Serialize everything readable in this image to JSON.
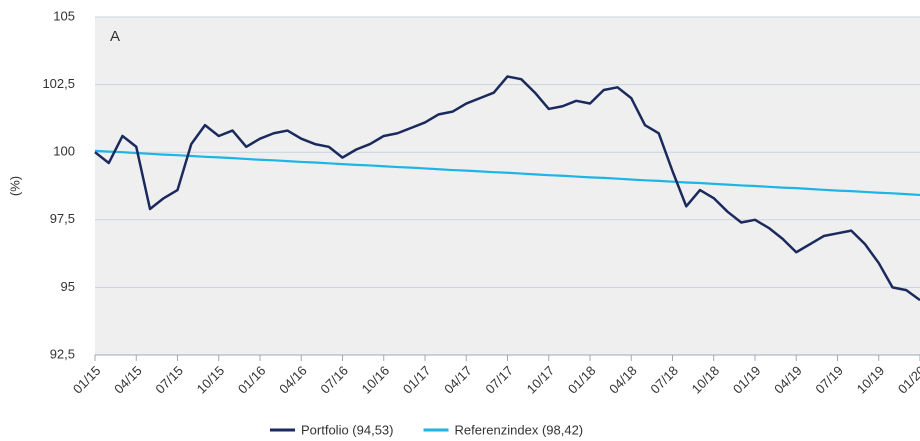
{
  "chart_data": {
    "type": "line",
    "annotation": "A",
    "ylabel": "(%)",
    "x": [
      "01/15",
      null,
      null,
      "04/15",
      null,
      null,
      "07/15",
      null,
      null,
      "10/15",
      null,
      null,
      "01/16",
      null,
      null,
      "04/16",
      null,
      null,
      "07/16",
      null,
      null,
      "10/16",
      null,
      null,
      "01/17",
      null,
      null,
      "04/17",
      null,
      null,
      "07/17",
      null,
      null,
      "10/17",
      null,
      null,
      "01/18",
      null,
      null,
      "04/18",
      null,
      null,
      "07/18",
      null,
      null,
      "10/18",
      null,
      null,
      "01/19",
      null,
      null,
      "04/19",
      null,
      null,
      "07/19",
      null,
      null,
      "10/19",
      null,
      null,
      "01/20"
    ],
    "series": [
      {
        "name": "Portfolio (94,53)",
        "color": "#1b2a5c",
        "values": [
          100.0,
          99.6,
          100.6,
          100.2,
          97.9,
          98.3,
          98.6,
          100.3,
          101.0,
          100.6,
          100.8,
          100.2,
          100.5,
          100.7,
          100.8,
          100.5,
          100.3,
          100.2,
          99.8,
          100.1,
          100.3,
          100.6,
          100.7,
          100.9,
          101.1,
          101.4,
          101.5,
          101.8,
          102.0,
          102.2,
          102.8,
          102.7,
          102.2,
          101.6,
          101.7,
          101.9,
          101.8,
          102.3,
          102.4,
          102.0,
          101.0,
          100.7,
          99.3,
          98.0,
          98.6,
          98.3,
          97.8,
          97.4,
          97.5,
          97.2,
          96.8,
          96.3,
          96.6,
          96.9,
          97.0,
          97.1,
          96.6,
          95.9,
          95.0,
          94.9,
          94.53
        ]
      },
      {
        "name": "Referenzindex (98,42)",
        "color": "#1db4e6",
        "values": [
          100.05,
          100.02,
          100.0,
          99.97,
          99.94,
          99.91,
          99.89,
          99.86,
          99.83,
          99.81,
          99.78,
          99.75,
          99.72,
          99.7,
          99.67,
          99.64,
          99.62,
          99.59,
          99.56,
          99.53,
          99.51,
          99.48,
          99.45,
          99.43,
          99.4,
          99.37,
          99.34,
          99.32,
          99.29,
          99.26,
          99.24,
          99.21,
          99.18,
          99.15,
          99.13,
          99.1,
          99.07,
          99.05,
          99.02,
          98.99,
          98.96,
          98.94,
          98.91,
          98.88,
          98.86,
          98.83,
          98.8,
          98.77,
          98.75,
          98.72,
          98.69,
          98.67,
          98.64,
          98.61,
          98.58,
          98.56,
          98.53,
          98.5,
          98.48,
          98.45,
          98.42
        ]
      }
    ],
    "ylim": [
      92.5,
      105
    ],
    "yticks": [
      {
        "value": 92.5,
        "label": "92,5"
      },
      95,
      {
        "value": 97.5,
        "label": "97,5"
      },
      100,
      {
        "value": 102.5,
        "label": "102,5"
      },
      105
    ],
    "grid": true
  }
}
